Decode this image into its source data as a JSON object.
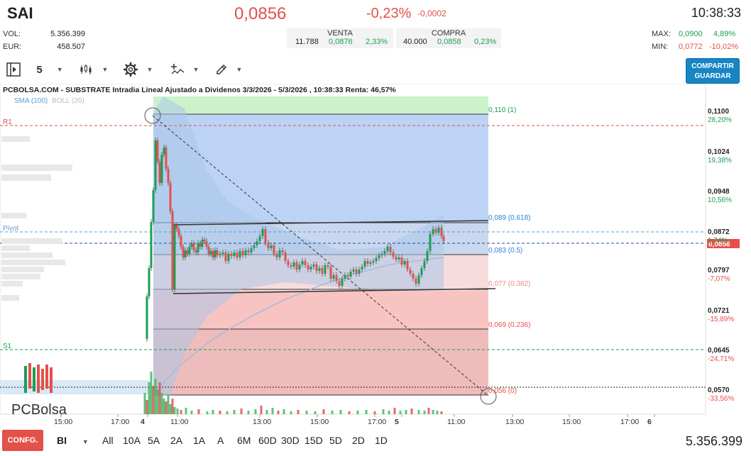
{
  "header": {
    "ticker": "SAI",
    "price": "0,0856",
    "change_pct": "-0,23%",
    "change_abs": "-0,0002",
    "clock": "10:38:33",
    "vol_label": "VOL:",
    "vol_value": "5.356.399",
    "eur_label": "EUR:",
    "eur_value": "458.507",
    "sell": {
      "label": "VENTA",
      "qty": "11.788",
      "price": "0,0876",
      "pct": "2,33%"
    },
    "buy": {
      "label": "COMPRA",
      "qty": "40.000",
      "price": "0,0858",
      "pct": "0,23%"
    },
    "max_label": "MAX:",
    "max_price": "0,0900",
    "max_pct": "4,89%",
    "min_label": "MIN:",
    "min_price": "0,0772",
    "min_pct": "-10,02%"
  },
  "toolbar": {
    "interval": "5",
    "share_label": "COMPARTIR",
    "save_label": "GUARDAR",
    "icons": [
      "panel-toggle-icon",
      "candles-icon",
      "gear-icon",
      "indicator-icon",
      "draw-pencil-icon"
    ]
  },
  "chart": {
    "title": "PCBOLSA.COM - SUBSTRATE Intradia Lineal Ajustado a Dividenos 3/3/2026 - 5/3/2026 , 10:38:33 Renta: 46,57%",
    "legend_sma": "SMA (100)",
    "legend_boll": "BOLL (20)",
    "watermark": "PCBolsa",
    "r1_label": "R1",
    "pivot_label": "Pivot",
    "s1_label": "S1",
    "current_price_tag": "0,0856",
    "price_axis": [
      {
        "price": "0,1100",
        "pct": "28,20%",
        "pct_color": "#1b9e57"
      },
      {
        "price": "0,1024",
        "pct": "19,38%",
        "pct_color": "#1b9e57"
      },
      {
        "price": "0,0948",
        "pct": "10,56%",
        "pct_color": "#1b9e57"
      },
      {
        "price": "0,0872",
        "pct": "1,74%",
        "pct_color": "#1b9e57"
      },
      {
        "price": "0,0797",
        "pct": "-7,07%",
        "pct_color": "#e4504a"
      },
      {
        "price": "0,0721",
        "pct": "-15,89%",
        "pct_color": "#e4504a"
      },
      {
        "price": "0,0645",
        "pct": "-24,71%",
        "pct_color": "#e4504a"
      },
      {
        "price": "0,0570",
        "pct": "-33,56%",
        "pct_color": "#e4504a"
      }
    ],
    "fib_labels": [
      {
        "text": "0,110 (1)",
        "color": "#1b9e57"
      },
      {
        "text": "0,089 (0.618)",
        "color": "#2f7ed8"
      },
      {
        "text": "0,083 (0.5)",
        "color": "#2f7ed8"
      },
      {
        "text": "0,077 (0.382)",
        "color": "#e98b87"
      },
      {
        "text": "0,069 (0.236)",
        "color": "#e4504a"
      },
      {
        "text": "0,056 (0)",
        "color": "#e4504a"
      }
    ],
    "time_axis": [
      "15:00",
      "17:00",
      "4",
      "11:00",
      "13:00",
      "15:00",
      "17:00",
      "5",
      "11:00",
      "13:00",
      "15:00",
      "17:00",
      "6"
    ]
  },
  "bottom": {
    "config_label": "CONFG.",
    "chart_type": "BI",
    "periods": [
      "All",
      "10A",
      "5A",
      "2A",
      "1A",
      "A",
      "6M",
      "60D",
      "30D",
      "15D",
      "5D",
      "2D",
      "1D"
    ],
    "total_volume": "5.356.399"
  }
}
